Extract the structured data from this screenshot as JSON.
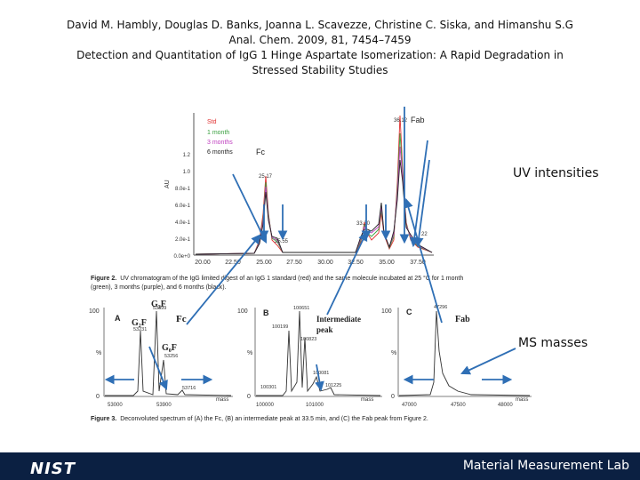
{
  "citation": {
    "authors": "David M. Hambly, Douglas D. Banks, Joanna L. Scavezze, Christine C. Siska, and Himanshu S.G",
    "journal": "Anal. Chem. 2009, 81, 7454–7459",
    "title_line1": "Detection and Quantitation of IgG 1 Hinge Aspartate Isomerization: A Rapid Degradation in",
    "title_line2": "Stressed Stability Studies"
  },
  "figure2": {
    "legend": [
      "Std",
      "1 month",
      "3 months",
      "6 months"
    ],
    "legend_colors": [
      "#e03030",
      "#3aa040",
      "#c040c0",
      "#222222"
    ],
    "ylabel": "AU",
    "yticks": [
      "0.0e+0",
      "2.0e-1",
      "4.0e-1",
      "6.0e-1",
      "8.0e-1",
      "1.0",
      "1.2"
    ],
    "xticks": [
      "20.00",
      "22.50",
      "25.00",
      "27.50",
      "30.00",
      "32.50",
      "35.00",
      "37.50"
    ],
    "peak_labels": [
      "25.17",
      "25.55",
      "33.30",
      "36.12",
      "22"
    ],
    "fc_label": "Fc",
    "fab_label": "Fab",
    "caption_bold": "Figure 2.",
    "caption_line1": "UV chromatogram of the IgG limited digest of an IgG 1 standard (red) and the same molecule incubated at 25 °C for 1 month",
    "caption_line2": "(green), 3 months (purple), and 6 months (black)."
  },
  "figure3": {
    "panelA": {
      "letter": "A",
      "fc": "Fc",
      "gf_top": "G₂F",
      "gf_bottom": "G₀F",
      "mass_labels": [
        "53399",
        "53231",
        "53256",
        "53716"
      ],
      "y_top": "100",
      "y_mid": "%",
      "y_bottom": "0",
      "xticks": [
        "53000",
        "53900"
      ],
      "xunit": "mass"
    },
    "panelB": {
      "letter": "B",
      "title": "Intermediate",
      "title2": "peak",
      "mass_labels": [
        "100651",
        "100199",
        "100823",
        "100081",
        "101225",
        "100301"
      ],
      "y_top": "100",
      "y_mid": "%",
      "y_bottom": "0",
      "xticks": [
        "100000",
        "101000"
      ],
      "xunit": "mass"
    },
    "panelC": {
      "letter": "C",
      "title": "Fab",
      "mass_labels": [
        "47296"
      ],
      "y_top": "100",
      "y_mid": "%",
      "y_bottom": "0",
      "xticks": [
        "47000",
        "47500",
        "48000"
      ],
      "xunit": "mass"
    },
    "caption_bold": "Figure 3.",
    "caption": "Deconvoluted spectrum of (A) the Fc, (B) an intermediate peak at 33.5 min, and (C) the Fab peak from Figure 2."
  },
  "annotations": {
    "uv": "UV intensities",
    "ms": "MS masses"
  },
  "footer": {
    "nist": "NIST",
    "lab": "Material Measurement Lab"
  },
  "colors": {
    "arrow": "#2f6fb5",
    "footer_bg": "#0b2042"
  }
}
